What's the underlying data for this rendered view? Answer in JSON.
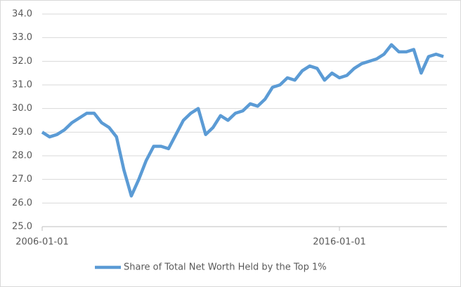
{
  "chart_data": {
    "type": "line",
    "x": [
      "2006-01-01",
      "2006-04-01",
      "2006-07-01",
      "2006-10-01",
      "2007-01-01",
      "2007-04-01",
      "2007-07-01",
      "2007-10-01",
      "2008-01-01",
      "2008-04-01",
      "2008-07-01",
      "2008-10-01",
      "2009-01-01",
      "2009-04-01",
      "2009-07-01",
      "2009-10-01",
      "2010-01-01",
      "2010-04-01",
      "2010-07-01",
      "2010-10-01",
      "2011-01-01",
      "2011-04-01",
      "2011-07-01",
      "2011-10-01",
      "2012-01-01",
      "2012-04-01",
      "2012-07-01",
      "2012-10-01",
      "2013-01-01",
      "2013-04-01",
      "2013-07-01",
      "2013-10-01",
      "2014-01-01",
      "2014-04-01",
      "2014-07-01",
      "2014-10-01",
      "2015-01-01",
      "2015-04-01",
      "2015-07-01",
      "2015-10-01",
      "2016-01-01",
      "2016-04-01",
      "2016-07-01",
      "2016-10-01",
      "2017-01-01",
      "2017-04-01",
      "2017-07-01",
      "2017-10-01",
      "2018-01-01",
      "2018-04-01",
      "2018-07-01",
      "2018-10-01",
      "2019-01-01",
      "2019-04-01",
      "2019-07-01"
    ],
    "series": [
      {
        "name": "Share of Total Net Worth Held by the Top 1%",
        "color": "#5b9bd5",
        "values": [
          29.0,
          28.8,
          28.9,
          29.1,
          29.4,
          29.6,
          29.8,
          29.8,
          29.4,
          29.2,
          28.8,
          27.4,
          26.3,
          27.0,
          27.8,
          28.4,
          28.4,
          28.3,
          28.9,
          29.5,
          29.8,
          30.0,
          28.9,
          29.2,
          29.7,
          29.5,
          29.8,
          29.9,
          30.2,
          30.1,
          30.4,
          30.9,
          31.0,
          31.3,
          31.2,
          31.6,
          31.8,
          31.7,
          31.2,
          31.5,
          31.3,
          31.4,
          31.7,
          31.9,
          32.0,
          32.1,
          32.3,
          32.7,
          32.4,
          32.4,
          32.5,
          31.5,
          32.2,
          32.3,
          32.2
        ]
      }
    ],
    "xticks": [
      "2006-01-01",
      "2016-01-01"
    ],
    "ylim": [
      25,
      34
    ],
    "yticks": [
      {
        "value": 25,
        "label": "25.0"
      },
      {
        "value": 26,
        "label": "26.0"
      },
      {
        "value": 27,
        "label": "27.0"
      },
      {
        "value": 28,
        "label": "28.0"
      },
      {
        "value": 29,
        "label": "29.0"
      },
      {
        "value": 30,
        "label": "30.0"
      },
      {
        "value": 31,
        "label": "31.0"
      },
      {
        "value": 32,
        "label": "32.0"
      },
      {
        "value": 33,
        "label": "33.0"
      },
      {
        "value": 34,
        "label": "34.0"
      }
    ],
    "grid": true,
    "legend": "bottom"
  }
}
